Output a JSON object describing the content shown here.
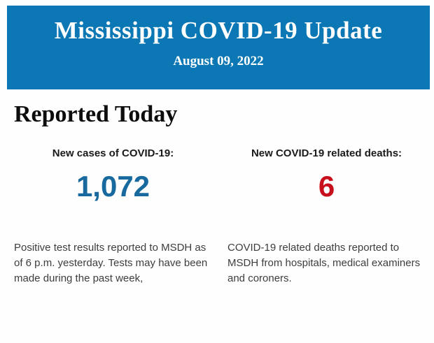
{
  "header": {
    "title": "Mississippi COVID-19 Update",
    "date": "August 09, 2022",
    "background_color": "#0b77b4",
    "text_color": "#ffffff"
  },
  "section": {
    "title": "Reported Today"
  },
  "stats": [
    {
      "label": "New cases of COVID-19:",
      "value": "1,072",
      "value_color": "#17699e",
      "description": "Positive test results reported to MSDH as of 6 p.m. yesterday. Tests may have been made during the past week,"
    },
    {
      "label": "New COVID-19 related deaths:",
      "value": "6",
      "value_color": "#c8101c",
      "description": "COVID-19 related deaths reported to MSDH from hospitals, medical examiners and coroners."
    }
  ]
}
